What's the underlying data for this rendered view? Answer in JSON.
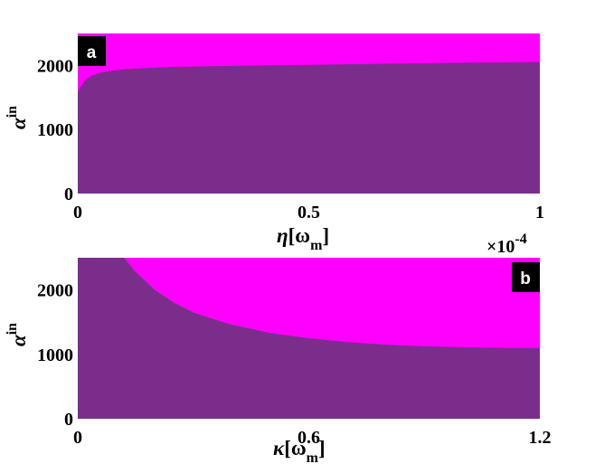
{
  "colors": {
    "region_low": "#7b2d8b",
    "region_high": "#ff00ff",
    "badge_bg": "#000000",
    "badge_text": "#ffffff"
  },
  "chart_data": [
    {
      "panel_label": "a",
      "type": "area",
      "xlim": [
        0,
        0.0001
      ],
      "ylim": [
        0,
        2500
      ],
      "x_ticks": [
        "0",
        "0.5",
        "1"
      ],
      "y_ticks": [
        "0",
        "1000",
        "2000"
      ],
      "x_multiplier": "×10",
      "x_multiplier_exp": "-4",
      "xlabel_symbol": "η",
      "xlabel_unit": "[ω",
      "xlabel_sub": "m",
      "xlabel_close": "]",
      "ylabel_symbol": "α",
      "ylabel_sup": "in",
      "boundary": {
        "x": [
          0,
          5e-07,
          1e-06,
          1.5e-06,
          2e-06,
          3e-06,
          5e-06,
          7.5e-06,
          1e-05,
          1.5e-05,
          2e-05,
          3e-05,
          4e-05,
          5e-05,
          6e-05,
          7e-05,
          8e-05,
          9e-05,
          0.0001
        ],
        "y": [
          1580,
          1650,
          1710,
          1760,
          1790,
          1840,
          1890,
          1920,
          1940,
          1960,
          1975,
          1990,
          2000,
          2010,
          2020,
          2030,
          2040,
          2048,
          2055
        ]
      }
    },
    {
      "panel_label": "b",
      "type": "area",
      "xlim": [
        0,
        1.2
      ],
      "ylim": [
        0,
        2500
      ],
      "x_ticks": [
        "0",
        "0.6",
        "1.2"
      ],
      "y_ticks": [
        "0",
        "1000",
        "2000"
      ],
      "xlabel_symbol": "κ",
      "xlabel_unit": "[ω",
      "xlabel_sub": "m",
      "xlabel_close": "]",
      "ylabel_symbol": "α",
      "ylabel_sup": "in",
      "boundary": {
        "x": [
          0.12,
          0.15,
          0.2,
          0.25,
          0.3,
          0.35,
          0.4,
          0.5,
          0.6,
          0.7,
          0.8,
          0.9,
          1.0,
          1.1,
          1.2
        ],
        "y": [
          2500,
          2280,
          2000,
          1800,
          1650,
          1550,
          1460,
          1330,
          1250,
          1190,
          1150,
          1125,
          1110,
          1100,
          1095
        ]
      }
    }
  ]
}
